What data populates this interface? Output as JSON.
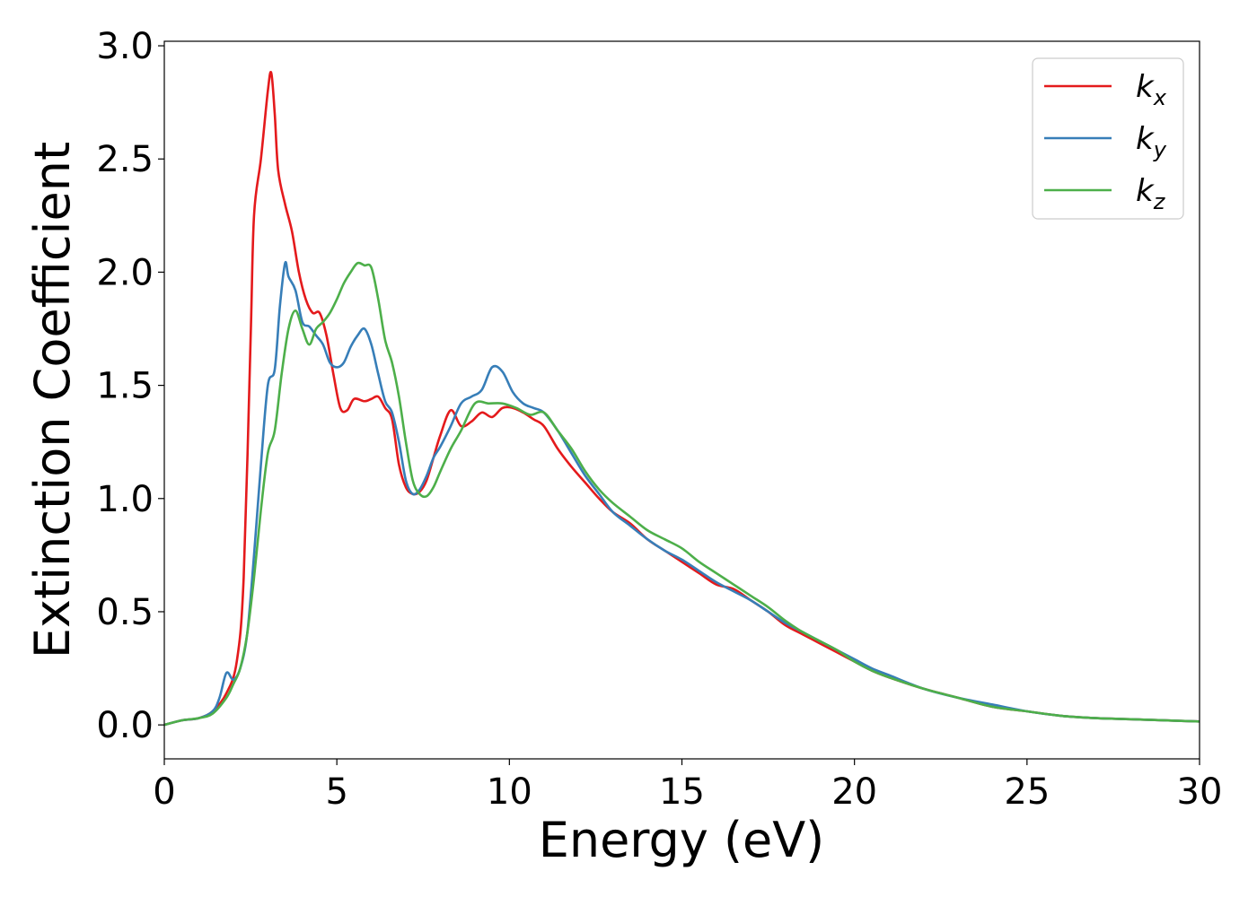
{
  "chart_data": {
    "type": "line",
    "title": "",
    "xlabel": "Energy (eV)",
    "ylabel": "Extinction Coefficient",
    "xlim": [
      0,
      30
    ],
    "ylim": [
      -0.15,
      3.02
    ],
    "xticks": [
      0,
      5,
      10,
      15,
      20,
      25,
      30
    ],
    "xtick_labels": [
      "0",
      "5",
      "10",
      "15",
      "20",
      "25",
      "30"
    ],
    "yticks": [
      0.0,
      0.5,
      1.0,
      1.5,
      2.0,
      2.5,
      3.0
    ],
    "ytick_labels": [
      "0.0",
      "0.5",
      "1.0",
      "1.5",
      "2.0",
      "2.5",
      "3.0"
    ],
    "grid": false,
    "legend_position": "top-right",
    "series": [
      {
        "name": "k_x",
        "label_base": "k",
        "label_sub": "x",
        "color": "#e41a1c",
        "x": [
          0,
          0.5,
          1.0,
          1.4,
          1.8,
          2.1,
          2.3,
          2.5,
          2.6,
          2.8,
          3.0,
          3.1,
          3.2,
          3.3,
          3.5,
          3.7,
          3.9,
          4.1,
          4.3,
          4.5,
          4.7,
          4.9,
          5.1,
          5.3,
          5.5,
          5.8,
          6.0,
          6.2,
          6.4,
          6.6,
          6.8,
          7.0,
          7.2,
          7.4,
          7.6,
          7.8,
          8.0,
          8.3,
          8.6,
          8.9,
          9.2,
          9.5,
          9.8,
          10.1,
          10.4,
          10.7,
          11.0,
          11.4,
          11.8,
          12.2,
          12.6,
          13.0,
          13.5,
          14.0,
          14.5,
          15.0,
          15.5,
          16.0,
          16.5,
          17.0,
          17.5,
          18.0,
          18.5,
          19.0,
          19.5,
          20.0,
          20.5,
          21.0,
          22.0,
          23.0,
          24.0,
          25.0,
          26.0,
          27.0,
          28.0,
          29.0,
          30.0
        ],
        "y": [
          0.0,
          0.02,
          0.03,
          0.06,
          0.14,
          0.28,
          0.65,
          1.7,
          2.25,
          2.5,
          2.8,
          2.88,
          2.7,
          2.45,
          2.3,
          2.18,
          2.0,
          1.88,
          1.82,
          1.82,
          1.72,
          1.55,
          1.4,
          1.39,
          1.44,
          1.43,
          1.44,
          1.45,
          1.4,
          1.35,
          1.15,
          1.05,
          1.02,
          1.03,
          1.08,
          1.18,
          1.28,
          1.39,
          1.32,
          1.34,
          1.38,
          1.36,
          1.4,
          1.4,
          1.38,
          1.35,
          1.32,
          1.22,
          1.14,
          1.07,
          1.0,
          0.94,
          0.89,
          0.82,
          0.77,
          0.72,
          0.67,
          0.62,
          0.6,
          0.55,
          0.5,
          0.44,
          0.4,
          0.36,
          0.32,
          0.28,
          0.24,
          0.21,
          0.16,
          0.12,
          0.08,
          0.06,
          0.04,
          0.03,
          0.025,
          0.02,
          0.015
        ]
      },
      {
        "name": "k_y",
        "label_base": "k",
        "label_sub": "y",
        "color": "#377eb8",
        "x": [
          0,
          0.5,
          1.0,
          1.4,
          1.6,
          1.8,
          2.0,
          2.2,
          2.4,
          2.6,
          2.8,
          3.0,
          3.2,
          3.35,
          3.5,
          3.6,
          3.8,
          4.0,
          4.2,
          4.4,
          4.6,
          4.8,
          5.0,
          5.2,
          5.4,
          5.6,
          5.8,
          6.0,
          6.2,
          6.4,
          6.6,
          6.8,
          7.0,
          7.2,
          7.4,
          7.6,
          7.8,
          8.0,
          8.3,
          8.6,
          8.9,
          9.2,
          9.5,
          9.8,
          10.1,
          10.4,
          10.7,
          11.0,
          11.4,
          11.8,
          12.2,
          12.6,
          13.0,
          13.5,
          14.0,
          14.5,
          15.0,
          15.5,
          16.0,
          16.5,
          17.0,
          17.5,
          18.0,
          18.5,
          19.0,
          19.5,
          20.0,
          20.5,
          21.0,
          22.0,
          23.0,
          24.0,
          25.0,
          26.0,
          27.0,
          28.0,
          29.0,
          30.0
        ],
        "y": [
          0.0,
          0.02,
          0.03,
          0.06,
          0.12,
          0.23,
          0.2,
          0.25,
          0.4,
          0.75,
          1.15,
          1.5,
          1.57,
          1.85,
          2.04,
          1.98,
          1.92,
          1.78,
          1.76,
          1.72,
          1.68,
          1.6,
          1.58,
          1.6,
          1.67,
          1.72,
          1.75,
          1.68,
          1.55,
          1.43,
          1.38,
          1.25,
          1.08,
          1.02,
          1.04,
          1.1,
          1.18,
          1.23,
          1.32,
          1.42,
          1.45,
          1.48,
          1.58,
          1.56,
          1.47,
          1.42,
          1.4,
          1.38,
          1.3,
          1.2,
          1.1,
          1.02,
          0.94,
          0.88,
          0.82,
          0.77,
          0.73,
          0.68,
          0.63,
          0.59,
          0.55,
          0.5,
          0.45,
          0.41,
          0.37,
          0.33,
          0.29,
          0.25,
          0.22,
          0.16,
          0.12,
          0.09,
          0.06,
          0.04,
          0.03,
          0.025,
          0.02,
          0.015
        ]
      },
      {
        "name": "k_z",
        "label_base": "k",
        "label_sub": "z",
        "color": "#4daf4a",
        "x": [
          0,
          0.5,
          1.0,
          1.4,
          1.8,
          2.0,
          2.2,
          2.4,
          2.6,
          2.8,
          3.0,
          3.2,
          3.4,
          3.6,
          3.8,
          4.0,
          4.2,
          4.4,
          4.6,
          4.8,
          5.0,
          5.2,
          5.4,
          5.6,
          5.8,
          6.0,
          6.2,
          6.4,
          6.6,
          6.8,
          7.0,
          7.2,
          7.4,
          7.6,
          7.8,
          8.0,
          8.3,
          8.6,
          9.0,
          9.4,
          9.8,
          10.2,
          10.6,
          11.0,
          11.4,
          11.8,
          12.2,
          12.6,
          13.0,
          13.5,
          14.0,
          14.5,
          15.0,
          15.5,
          16.0,
          16.5,
          17.0,
          17.5,
          18.0,
          18.5,
          19.0,
          19.5,
          20.0,
          20.5,
          21.0,
          22.0,
          23.0,
          24.0,
          25.0,
          26.0,
          27.0,
          28.0,
          29.0,
          30.0
        ],
        "y": [
          0.0,
          0.02,
          0.03,
          0.05,
          0.12,
          0.18,
          0.25,
          0.4,
          0.65,
          0.95,
          1.2,
          1.3,
          1.55,
          1.75,
          1.83,
          1.75,
          1.68,
          1.75,
          1.78,
          1.82,
          1.88,
          1.95,
          2.0,
          2.04,
          2.03,
          2.02,
          1.88,
          1.7,
          1.6,
          1.45,
          1.25,
          1.08,
          1.02,
          1.01,
          1.05,
          1.12,
          1.22,
          1.3,
          1.42,
          1.42,
          1.42,
          1.4,
          1.37,
          1.38,
          1.3,
          1.22,
          1.12,
          1.04,
          0.98,
          0.92,
          0.86,
          0.82,
          0.78,
          0.72,
          0.67,
          0.62,
          0.57,
          0.52,
          0.46,
          0.41,
          0.37,
          0.33,
          0.28,
          0.24,
          0.21,
          0.16,
          0.12,
          0.08,
          0.06,
          0.04,
          0.03,
          0.025,
          0.02,
          0.015
        ]
      }
    ]
  }
}
